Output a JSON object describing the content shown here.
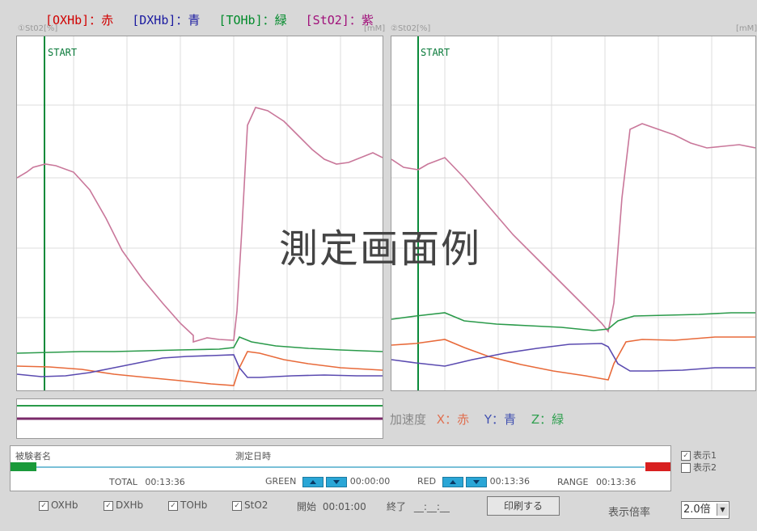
{
  "legend": {
    "oxhb": "[OXHb]：赤",
    "dxhb": "[DXHb]：青",
    "tohb": "[TOHb]：緑",
    "sto2": "[StO2]：紫",
    "colors": {
      "oxhb": "#d00000",
      "dxhb": "#1a1aa0",
      "tohb": "#008a2a",
      "sto2": "#a0107a"
    }
  },
  "charts": {
    "left": {
      "label": "①St02[%]",
      "unit": "[mM]",
      "marker": "START"
    },
    "right": {
      "label": "②St02[%]",
      "unit": "[mM]",
      "marker": "START"
    }
  },
  "overlay_text": "測定画面例",
  "accel": {
    "label": "加速度",
    "x": "X：赤",
    "y": "Y：青",
    "z": "Z：緑"
  },
  "info": {
    "subject_label": "被験者名",
    "datetime_label": "測定日時",
    "total_label": "TOTAL",
    "total_value": "00:13:36",
    "green_label": "GREEN",
    "green_value": "00:00:00",
    "red_label": "RED",
    "red_value": "00:13:36",
    "range_label": "RANGE",
    "range_value": "00:13:36"
  },
  "display_opts": {
    "opt1": "表示1",
    "opt2": "表示2"
  },
  "footer": {
    "cb_oxhb": "OXHb",
    "cb_dxhb": "DXHb",
    "cb_tohb": "TOHb",
    "cb_sto2": "StO2",
    "start_label": "開始",
    "start_value": "00:01:00",
    "end_label": "終了",
    "end_value": "__:__:__",
    "print_label": "印刷する",
    "zoom_label": "表示倍率",
    "zoom_value": "2.0倍"
  }
}
